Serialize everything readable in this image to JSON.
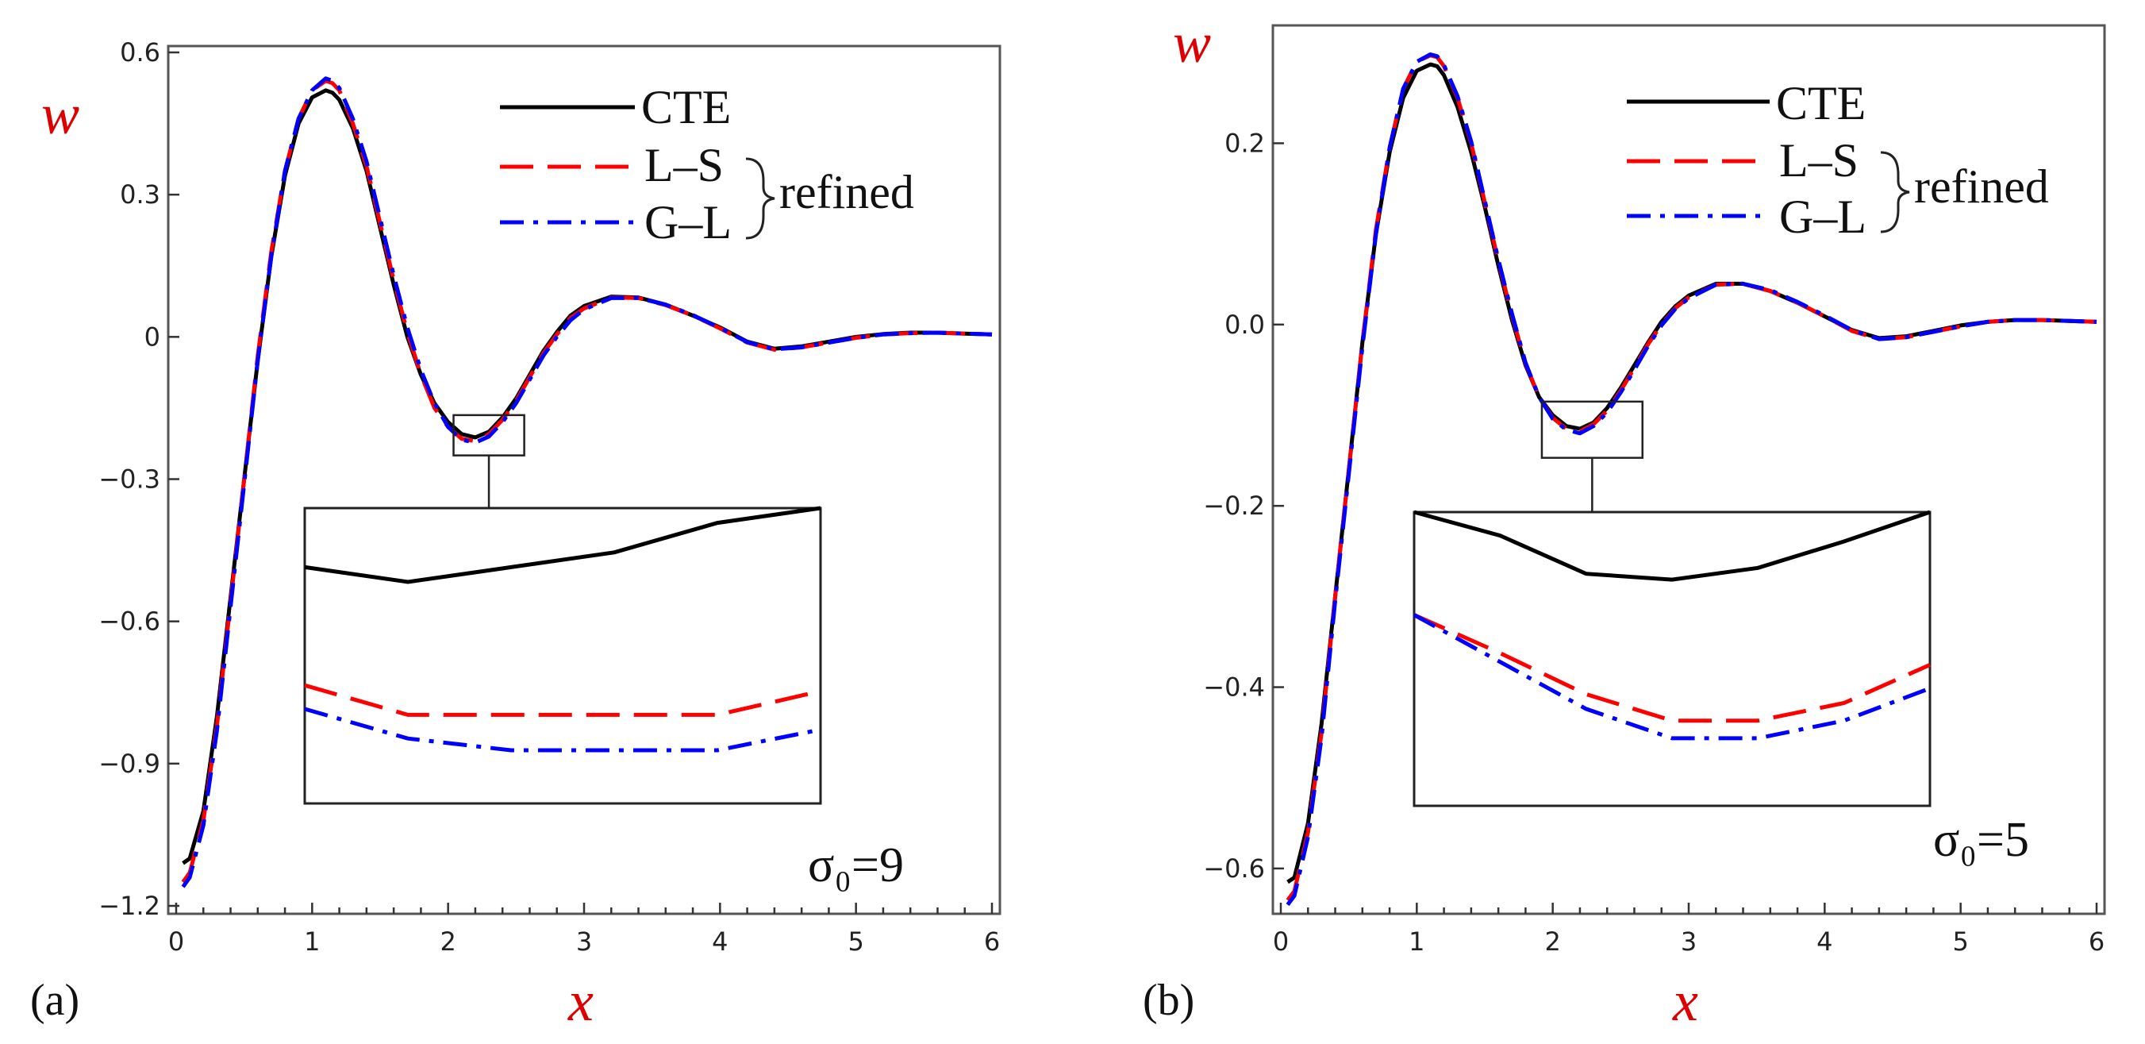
{
  "colors": {
    "cte": "#000000",
    "ls": "#ff0000",
    "gl": "#0000ff",
    "axis_label": "#dd0000"
  },
  "chart_data": [
    {
      "type": "line",
      "panel": "(a)",
      "ylabel": "w",
      "xlabel": "x",
      "xlim": [
        0,
        6
      ],
      "ylim": [
        -1.2,
        0.6
      ],
      "xticks": [
        0,
        1,
        2,
        3,
        4,
        5,
        6
      ],
      "xtick_labels": [
        "0",
        "1",
        "2",
        "3",
        "4",
        "5",
        "6"
      ],
      "yticks": [
        0.6,
        0.3,
        0,
        -0.3,
        -0.6,
        -0.9,
        -1.2
      ],
      "ytick_labels": [
        "0.6",
        "0.3",
        "0",
        "−0.3",
        "−0.6",
        "−0.9",
        "−1.2"
      ],
      "legend": [
        "CTE",
        "L–S",
        "G–L"
      ],
      "legend_group_label": "refined",
      "annotation": "σ₀=9",
      "zoom_box": {
        "x": [
          2.04,
          2.56
        ],
        "y": [
          -0.25,
          -0.165
        ]
      },
      "series": [
        {
          "name": "CTE",
          "style": "solid",
          "x": [
            0.05,
            0.1,
            0.2,
            0.3,
            0.4,
            0.5,
            0.6,
            0.7,
            0.8,
            0.9,
            1.0,
            1.1,
            1.15,
            1.2,
            1.3,
            1.4,
            1.5,
            1.6,
            1.7,
            1.8,
            1.9,
            2.0,
            2.1,
            2.2,
            2.3,
            2.4,
            2.5,
            2.6,
            2.7,
            2.8,
            2.9,
            3.0,
            3.2,
            3.4,
            3.6,
            3.8,
            4.0,
            4.2,
            4.4,
            4.6,
            4.8,
            5.0,
            5.2,
            5.4,
            5.6,
            5.8,
            6.0
          ],
          "y": [
            -1.11,
            -1.1,
            -1.0,
            -0.8,
            -0.55,
            -0.3,
            -0.05,
            0.17,
            0.34,
            0.45,
            0.505,
            0.52,
            0.515,
            0.5,
            0.44,
            0.35,
            0.23,
            0.11,
            0.0,
            -0.08,
            -0.14,
            -0.18,
            -0.205,
            -0.212,
            -0.2,
            -0.17,
            -0.13,
            -0.08,
            -0.03,
            0.01,
            0.045,
            0.065,
            0.085,
            0.083,
            0.068,
            0.045,
            0.02,
            -0.01,
            -0.025,
            -0.02,
            -0.01,
            0.0,
            0.006,
            0.009,
            0.009,
            0.007,
            0.005
          ]
        },
        {
          "name": "L–S",
          "style": "dashed",
          "x": [
            0.05,
            0.1,
            0.2,
            0.3,
            0.4,
            0.5,
            0.6,
            0.7,
            0.8,
            0.9,
            1.0,
            1.1,
            1.15,
            1.2,
            1.3,
            1.4,
            1.5,
            1.6,
            1.7,
            1.8,
            1.9,
            2.0,
            2.1,
            2.2,
            2.3,
            2.4,
            2.5,
            2.6,
            2.7,
            2.8,
            2.9,
            3.0,
            3.2,
            3.4,
            3.6,
            3.8,
            4.0,
            4.2,
            4.4,
            4.6,
            4.8,
            5.0,
            5.2,
            5.4,
            5.6,
            5.8,
            6.0
          ],
          "y": [
            -1.15,
            -1.13,
            -1.02,
            -0.82,
            -0.56,
            -0.3,
            -0.04,
            0.18,
            0.35,
            0.46,
            0.52,
            0.54,
            0.535,
            0.52,
            0.45,
            0.36,
            0.24,
            0.12,
            0.01,
            -0.08,
            -0.15,
            -0.19,
            -0.215,
            -0.22,
            -0.205,
            -0.175,
            -0.135,
            -0.085,
            -0.035,
            0.005,
            0.04,
            0.06,
            0.083,
            0.082,
            0.067,
            0.045,
            0.018,
            -0.012,
            -0.027,
            -0.022,
            -0.012,
            -0.002,
            0.005,
            0.008,
            0.009,
            0.007,
            0.005
          ]
        },
        {
          "name": "G–L",
          "style": "dashdot",
          "x": [
            0.05,
            0.1,
            0.2,
            0.3,
            0.4,
            0.5,
            0.6,
            0.7,
            0.8,
            0.9,
            1.0,
            1.1,
            1.15,
            1.2,
            1.3,
            1.4,
            1.5,
            1.6,
            1.7,
            1.8,
            1.9,
            2.0,
            2.1,
            2.2,
            2.3,
            2.4,
            2.5,
            2.6,
            2.7,
            2.8,
            2.9,
            3.0,
            3.2,
            3.4,
            3.6,
            3.8,
            4.0,
            4.2,
            4.4,
            4.6,
            4.8,
            5.0,
            5.2,
            5.4,
            5.6,
            5.8,
            6.0
          ],
          "y": [
            -1.16,
            -1.14,
            -1.03,
            -0.83,
            -0.57,
            -0.31,
            -0.05,
            0.17,
            0.35,
            0.46,
            0.52,
            0.545,
            0.54,
            0.525,
            0.46,
            0.37,
            0.25,
            0.13,
            0.02,
            -0.07,
            -0.14,
            -0.19,
            -0.217,
            -0.223,
            -0.21,
            -0.18,
            -0.14,
            -0.09,
            -0.04,
            0.0,
            0.035,
            0.058,
            0.082,
            0.082,
            0.068,
            0.046,
            0.019,
            -0.011,
            -0.026,
            -0.022,
            -0.012,
            -0.002,
            0.005,
            0.008,
            0.009,
            0.007,
            0.005
          ]
        }
      ]
    },
    {
      "type": "line",
      "panel": "(b)",
      "ylabel": "w",
      "xlabel": "x",
      "xlim": [
        0,
        6
      ],
      "ylim": [
        -0.65,
        0.33
      ],
      "xticks": [
        0,
        1,
        2,
        3,
        4,
        5,
        6
      ],
      "xtick_labels": [
        "0",
        "1",
        "2",
        "3",
        "4",
        "5",
        "6"
      ],
      "yticks": [
        0.2,
        0.0,
        -0.2,
        -0.4,
        -0.6
      ],
      "ytick_labels": [
        "0.2",
        "0.0",
        "−0.2",
        "−0.4",
        "−0.6"
      ],
      "legend": [
        "CTE",
        "L–S",
        "G–L"
      ],
      "legend_group_label": "refined",
      "annotation": "σ₀=5",
      "zoom_box": {
        "x": [
          1.92,
          2.66
        ],
        "y": [
          -0.147,
          -0.085
        ]
      },
      "series": [
        {
          "name": "CTE",
          "style": "solid",
          "x": [
            0.05,
            0.1,
            0.2,
            0.3,
            0.4,
            0.5,
            0.6,
            0.7,
            0.8,
            0.9,
            1.0,
            1.1,
            1.15,
            1.2,
            1.3,
            1.4,
            1.5,
            1.6,
            1.7,
            1.8,
            1.9,
            2.0,
            2.1,
            2.2,
            2.3,
            2.4,
            2.5,
            2.6,
            2.7,
            2.8,
            2.9,
            3.0,
            3.2,
            3.4,
            3.6,
            3.8,
            4.0,
            4.2,
            4.4,
            4.6,
            4.8,
            5.0,
            5.2,
            5.4,
            5.6,
            5.8,
            6.0
          ],
          "y": [
            -0.615,
            -0.61,
            -0.55,
            -0.44,
            -0.3,
            -0.16,
            -0.02,
            0.1,
            0.19,
            0.25,
            0.28,
            0.287,
            0.285,
            0.275,
            0.24,
            0.19,
            0.13,
            0.065,
            0.005,
            -0.045,
            -0.08,
            -0.1,
            -0.112,
            -0.115,
            -0.108,
            -0.092,
            -0.07,
            -0.045,
            -0.02,
            0.003,
            0.02,
            0.032,
            0.045,
            0.045,
            0.037,
            0.024,
            0.009,
            -0.006,
            -0.015,
            -0.013,
            -0.007,
            -0.001,
            0.003,
            0.005,
            0.005,
            0.004,
            0.003
          ]
        },
        {
          "name": "L–S",
          "style": "dashed",
          "x": [
            0.05,
            0.1,
            0.2,
            0.3,
            0.4,
            0.5,
            0.6,
            0.7,
            0.8,
            0.9,
            1.0,
            1.1,
            1.15,
            1.2,
            1.3,
            1.4,
            1.5,
            1.6,
            1.7,
            1.8,
            1.9,
            2.0,
            2.1,
            2.2,
            2.3,
            2.4,
            2.5,
            2.6,
            2.7,
            2.8,
            2.9,
            3.0,
            3.2,
            3.4,
            3.6,
            3.8,
            4.0,
            4.2,
            4.4,
            4.6,
            4.8,
            5.0,
            5.2,
            5.4,
            5.6,
            5.8,
            6.0
          ],
          "y": [
            -0.635,
            -0.625,
            -0.56,
            -0.45,
            -0.3,
            -0.16,
            -0.02,
            0.105,
            0.195,
            0.26,
            0.29,
            0.297,
            0.295,
            0.285,
            0.25,
            0.2,
            0.135,
            0.07,
            0.01,
            -0.043,
            -0.08,
            -0.103,
            -0.115,
            -0.118,
            -0.11,
            -0.095,
            -0.073,
            -0.048,
            -0.022,
            0.0,
            0.018,
            0.03,
            0.044,
            0.045,
            0.037,
            0.024,
            0.009,
            -0.007,
            -0.016,
            -0.014,
            -0.008,
            -0.002,
            0.003,
            0.005,
            0.005,
            0.004,
            0.003
          ]
        },
        {
          "name": "G–L",
          "style": "dashdot",
          "x": [
            0.05,
            0.1,
            0.2,
            0.3,
            0.4,
            0.5,
            0.6,
            0.7,
            0.8,
            0.9,
            1.0,
            1.1,
            1.15,
            1.2,
            1.3,
            1.4,
            1.5,
            1.6,
            1.7,
            1.8,
            1.9,
            2.0,
            2.1,
            2.2,
            2.3,
            2.4,
            2.5,
            2.6,
            2.7,
            2.8,
            2.9,
            3.0,
            3.2,
            3.4,
            3.6,
            3.8,
            4.0,
            4.2,
            4.4,
            4.6,
            4.8,
            5.0,
            5.2,
            5.4,
            5.6,
            5.8,
            6.0
          ],
          "y": [
            -0.64,
            -0.63,
            -0.565,
            -0.455,
            -0.305,
            -0.165,
            -0.025,
            0.1,
            0.195,
            0.26,
            0.29,
            0.298,
            0.296,
            0.286,
            0.252,
            0.202,
            0.137,
            0.072,
            0.012,
            -0.042,
            -0.08,
            -0.104,
            -0.116,
            -0.12,
            -0.112,
            -0.097,
            -0.075,
            -0.05,
            -0.024,
            -0.001,
            0.017,
            0.029,
            0.044,
            0.045,
            0.038,
            0.025,
            0.01,
            -0.006,
            -0.016,
            -0.014,
            -0.008,
            -0.002,
            0.003,
            0.005,
            0.005,
            0.004,
            0.003
          ]
        }
      ]
    }
  ],
  "insets": [
    {
      "series": [
        {
          "name": "CTE",
          "x": [
            0,
            1,
            2,
            3,
            4,
            5
          ],
          "y": [
            0.8,
            0.75,
            0.8,
            0.85,
            0.95,
            1.0
          ]
        },
        {
          "name": "L–S",
          "x": [
            0,
            1,
            2,
            3,
            4,
            5
          ],
          "y": [
            0.4,
            0.3,
            0.3,
            0.3,
            0.3,
            0.38
          ]
        },
        {
          "name": "G–L",
          "x": [
            0,
            1,
            2,
            3,
            4,
            5
          ],
          "y": [
            0.32,
            0.22,
            0.18,
            0.18,
            0.18,
            0.25
          ]
        }
      ]
    },
    {
      "series": [
        {
          "name": "CTE",
          "x": [
            0,
            1,
            2,
            3,
            4,
            5,
            6
          ],
          "y": [
            1.0,
            0.92,
            0.79,
            0.77,
            0.81,
            0.9,
            1.0
          ]
        },
        {
          "name": "L–S",
          "x": [
            0,
            1,
            2,
            3,
            4,
            5,
            6
          ],
          "y": [
            0.65,
            0.52,
            0.38,
            0.29,
            0.29,
            0.35,
            0.48
          ]
        },
        {
          "name": "G–L",
          "x": [
            0,
            1,
            2,
            3,
            4,
            5,
            6
          ],
          "y": [
            0.65,
            0.49,
            0.33,
            0.23,
            0.23,
            0.29,
            0.4
          ]
        }
      ]
    }
  ]
}
